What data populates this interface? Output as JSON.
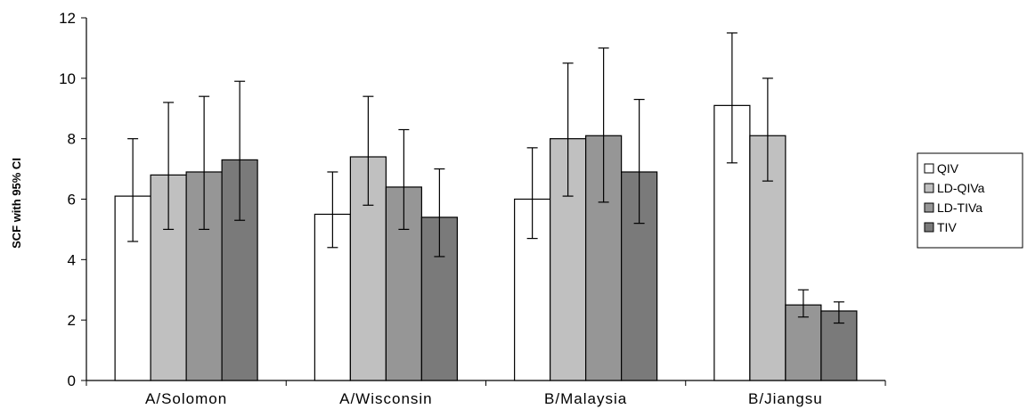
{
  "chart_data": {
    "type": "bar",
    "title": "",
    "xlabel": "",
    "ylabel": "SCF with 95% CI",
    "ylim": [
      0,
      12
    ],
    "yticks": [
      0,
      2,
      4,
      6,
      8,
      10,
      12
    ],
    "grid": false,
    "legend_position": "right",
    "categories": [
      "A/Solomon",
      "A/Wisconsin",
      "B/Malaysia",
      "B/Jiangsu"
    ],
    "series": [
      {
        "name": "QIV",
        "color": "#ffffff",
        "values": [
          6.1,
          5.5,
          6.0,
          9.1
        ],
        "ci_low": [
          4.6,
          4.4,
          4.7,
          7.2
        ],
        "ci_high": [
          8.0,
          6.9,
          7.7,
          11.5
        ]
      },
      {
        "name": "LD-QIVa",
        "color": "#c0c0c0",
        "values": [
          6.8,
          7.4,
          8.0,
          8.1
        ],
        "ci_low": [
          5.0,
          5.8,
          6.1,
          6.6
        ],
        "ci_high": [
          9.2,
          9.4,
          10.5,
          10.0
        ]
      },
      {
        "name": "LD-TIVa",
        "color": "#969696",
        "values": [
          6.9,
          6.4,
          8.1,
          2.5
        ],
        "ci_low": [
          5.0,
          5.0,
          5.9,
          2.1
        ],
        "ci_high": [
          9.4,
          8.3,
          11.0,
          3.0
        ]
      },
      {
        "name": "TIV",
        "color": "#7a7a7a",
        "values": [
          7.3,
          5.4,
          6.9,
          2.3
        ],
        "ci_low": [
          5.3,
          4.1,
          5.2,
          1.9
        ],
        "ci_high": [
          9.9,
          7.0,
          9.3,
          2.6
        ]
      }
    ]
  }
}
